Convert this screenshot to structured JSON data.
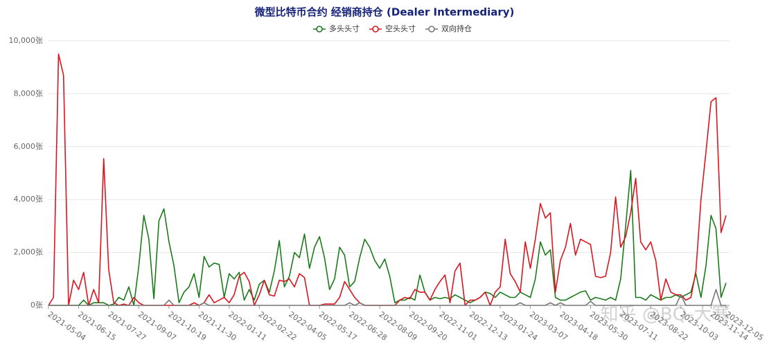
{
  "chart_data": {
    "type": "line",
    "title": "微型比特币合约 经销商持仓 (Dealer Intermediary)",
    "watermark": "知乎 @BQ-大寒",
    "categories": [
      "2021-05-04",
      null,
      null,
      null,
      null,
      null,
      "2021-06-15",
      null,
      null,
      null,
      null,
      null,
      "2021-07-27",
      null,
      null,
      null,
      null,
      null,
      "2021-09-07",
      null,
      null,
      null,
      null,
      null,
      "2021-10-19",
      null,
      null,
      null,
      null,
      null,
      "2021-11-30",
      null,
      null,
      null,
      null,
      null,
      "2022-01-11",
      null,
      null,
      null,
      null,
      null,
      "2022-02-22",
      null,
      null,
      null,
      null,
      null,
      "2022-04-05",
      null,
      null,
      null,
      null,
      null,
      "2022-05-17",
      null,
      null,
      null,
      null,
      null,
      "2022-06-28",
      null,
      null,
      null,
      null,
      null,
      "2022-08-09",
      null,
      null,
      null,
      null,
      null,
      "2022-09-20",
      null,
      null,
      null,
      null,
      null,
      "2022-11-01",
      null,
      null,
      null,
      null,
      null,
      "2022-12-13",
      null,
      null,
      null,
      null,
      null,
      "2023-01-24",
      null,
      null,
      null,
      null,
      null,
      "2023-03-07",
      null,
      null,
      null,
      null,
      null,
      "2023-04-18",
      null,
      null,
      null,
      null,
      null,
      "2023-05-30",
      null,
      null,
      null,
      null,
      null,
      "2023-07-11",
      null,
      null,
      null,
      null,
      null,
      "2023-08-22",
      null,
      null,
      null,
      null,
      null,
      "2023-10-03",
      null,
      null,
      null,
      null,
      null,
      "2023-11-14",
      null,
      null,
      "2023-12-05"
    ],
    "series": [
      {
        "name": "多头头寸",
        "color": "#1a7a1a",
        "values": [
          0,
          0,
          0,
          0,
          0,
          0,
          0,
          200,
          0,
          100,
          100,
          100,
          0,
          50,
          300,
          200,
          700,
          0,
          1500,
          3400,
          2500,
          250,
          3200,
          3650,
          2400,
          1500,
          100,
          500,
          700,
          1200,
          300,
          1850,
          1450,
          1600,
          1550,
          300,
          1200,
          1000,
          1250,
          200,
          600,
          200,
          800,
          950,
          500,
          1300,
          2450,
          700,
          1100,
          2000,
          1800,
          2700,
          1400,
          2200,
          2600,
          1800,
          600,
          1000,
          2200,
          1900,
          700,
          900,
          1800,
          2500,
          2200,
          1700,
          1400,
          1750,
          1100,
          100,
          200,
          200,
          300,
          200,
          1150,
          500,
          200,
          300,
          250,
          300,
          250,
          400,
          300,
          200,
          100,
          200,
          300,
          500,
          450,
          300,
          500,
          400,
          300,
          300,
          500,
          400,
          300,
          1000,
          2400,
          1900,
          2100,
          300,
          200,
          200,
          300,
          400,
          500,
          550,
          200,
          300,
          250,
          200,
          300,
          200,
          1000,
          3000,
          5100,
          300,
          300,
          200,
          400,
          300,
          200,
          300,
          300,
          400,
          300,
          400,
          500,
          1200,
          300,
          1500,
          3400,
          2900,
          300,
          850
        ]
      },
      {
        "name": "空头头寸",
        "color": "#d9141e",
        "values": [
          0,
          300,
          9500,
          8700,
          0,
          950,
          600,
          1250,
          0,
          600,
          100,
          5550,
          1350,
          100,
          0,
          50,
          0,
          300,
          100,
          0,
          0,
          0,
          0,
          0,
          0,
          0,
          0,
          0,
          0,
          100,
          0,
          100,
          400,
          100,
          200,
          300,
          100,
          400,
          1100,
          1250,
          900,
          0,
          400,
          950,
          400,
          350,
          950,
          900,
          1000,
          700,
          1200,
          1050,
          0,
          0,
          0,
          50,
          50,
          50,
          300,
          900,
          600,
          300,
          100,
          0,
          0,
          0,
          0,
          0,
          0,
          0,
          200,
          300,
          250,
          600,
          500,
          500,
          200,
          600,
          900,
          1150,
          100,
          1300,
          1600,
          0,
          200,
          200,
          300,
          500,
          0,
          500,
          700,
          2500,
          1200,
          900,
          500,
          2400,
          1400,
          2500,
          3850,
          3300,
          3500,
          500,
          1700,
          2200,
          3100,
          1900,
          2500,
          2400,
          2300,
          1100,
          1050,
          1100,
          2000,
          4100,
          2200,
          2600,
          3500,
          4800,
          2400,
          2100,
          2400,
          1700,
          200,
          1000,
          500,
          400,
          400,
          200,
          300,
          1300,
          4000,
          5800,
          7700,
          7850,
          2750,
          3400
        ]
      },
      {
        "name": "双向持仓",
        "color": "#777777",
        "values": [
          0,
          0,
          0,
          0,
          0,
          0,
          0,
          0,
          0,
          0,
          0,
          0,
          0,
          0,
          0,
          0,
          0,
          0,
          0,
          0,
          0,
          0,
          0,
          0,
          200,
          0,
          0,
          0,
          0,
          0,
          0,
          100,
          0,
          0,
          0,
          0,
          0,
          0,
          0,
          0,
          0,
          0,
          0,
          0,
          0,
          0,
          0,
          0,
          0,
          0,
          0,
          0,
          0,
          0,
          0,
          0,
          0,
          0,
          0,
          0,
          100,
          0,
          100,
          0,
          0,
          0,
          0,
          0,
          0,
          0,
          0,
          0,
          0,
          0,
          0,
          0,
          0,
          0,
          0,
          0,
          0,
          0,
          0,
          0,
          0,
          0,
          0,
          0,
          0,
          0,
          0,
          0,
          0,
          0,
          100,
          0,
          0,
          0,
          0,
          0,
          100,
          0,
          100,
          0,
          0,
          0,
          0,
          0,
          150,
          0,
          0,
          0,
          0,
          0,
          0,
          0,
          0,
          0,
          0,
          0,
          0,
          0,
          0,
          0,
          0,
          0,
          400,
          0,
          0,
          0,
          0,
          0,
          0,
          600,
          0,
          0
        ]
      }
    ],
    "ylim": [
      0,
      10000
    ],
    "yticks": [
      {
        "value": 0,
        "label": "0张"
      },
      {
        "value": 2000,
        "label": "2,000张"
      },
      {
        "value": 4000,
        "label": "4,000张"
      },
      {
        "value": 6000,
        "label": "6,000张"
      },
      {
        "value": 8000,
        "label": "8,000张"
      },
      {
        "value": 10000,
        "label": "10,000张"
      }
    ],
    "grid": true,
    "legend": "top"
  }
}
